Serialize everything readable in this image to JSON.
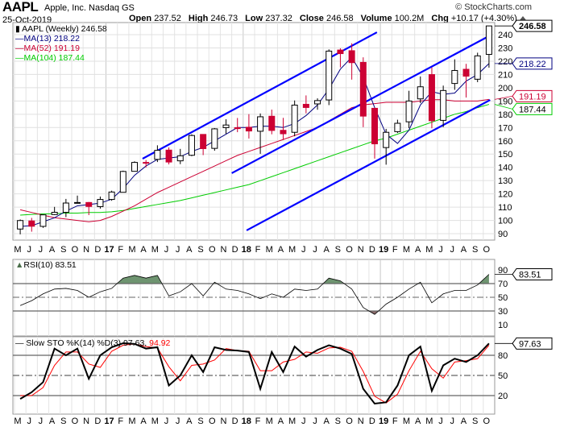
{
  "header": {
    "ticker": "AAPL",
    "company": "Apple, Inc. Nasdaq GS",
    "copyright": "© StockCharts.com",
    "date": "25-Oct-2019",
    "stats": [
      {
        "label": "Open",
        "value": "237.52"
      },
      {
        "label": "High",
        "value": "246.73"
      },
      {
        "label": "Low",
        "value": "237.32"
      },
      {
        "label": "Close",
        "value": "246.58"
      },
      {
        "label": "Volume",
        "value": "100.2M"
      },
      {
        "label": "Chg",
        "value": "+10.17 (+4.30%)"
      }
    ]
  },
  "legend": {
    "price": "AAPL (Weekly) 246.58",
    "ma13": "MA(13) 218.22",
    "ma52": "MA(52) 191.19",
    "ma104": "MA(104) 187.44",
    "rsi": "RSI(10) 83.51",
    "sto_prefix": "Slow STO %K(14) %D(3) 97.63,",
    "sto_d": "94.92"
  },
  "tags": {
    "price": "246.58",
    "ma13": "218.22",
    "ma52": "191.19",
    "ma104": "187.44",
    "rsi": "83.51",
    "sto": "97.63"
  },
  "colors": {
    "up": "#000000",
    "down": "#cc0033",
    "ma13": "#000080",
    "ma52": "#cc0033",
    "ma104": "#00cc00",
    "trend": "#0000ff",
    "rsi_over": "#6e9470",
    "rsi_under": "#8c6b6b",
    "sto_d": "#ff0000"
  },
  "chart_data": {
    "type": "candlestick",
    "title": "AAPL (Weekly)",
    "period_note": "monthly approximation of weekly candles",
    "month_labels": [
      "M",
      "J",
      "J",
      "A",
      "S",
      "O",
      "N",
      "D",
      "17",
      "F",
      "M",
      "A",
      "M",
      "J",
      "J",
      "A",
      "S",
      "O",
      "N",
      "D",
      "18",
      "F",
      "M",
      "A",
      "M",
      "J",
      "J",
      "A",
      "S",
      "O",
      "N",
      "D",
      "19",
      "F",
      "M",
      "A",
      "M",
      "J",
      "J",
      "A",
      "S",
      "O"
    ],
    "y_ticks": [
      90,
      100,
      110,
      120,
      130,
      140,
      150,
      160,
      170,
      180,
      190,
      200,
      210,
      220,
      230,
      240
    ],
    "ylim": [
      84,
      249
    ],
    "ohlc": [
      [
        93.5,
        100.7,
        89.5,
        99.9
      ],
      [
        99.6,
        101.9,
        91.5,
        95.6
      ],
      [
        95.5,
        104.5,
        94.4,
        104.2
      ],
      [
        104.4,
        110.2,
        104,
        106.1
      ],
      [
        106.1,
        116.2,
        102.5,
        113.1
      ],
      [
        113.2,
        118.7,
        113,
        113.5
      ],
      [
        113.5,
        113.9,
        104,
        110.5
      ],
      [
        110.4,
        118,
        108.9,
        115.8
      ],
      [
        115.8,
        122.4,
        114.8,
        121.4
      ],
      [
        121.2,
        137.5,
        121,
        136.9
      ],
      [
        137,
        144.5,
        137,
        143.7
      ],
      [
        143.7,
        145.5,
        140,
        143.6
      ],
      [
        146,
        156.6,
        144,
        152.8
      ],
      [
        153,
        155,
        142.2,
        144
      ],
      [
        144.9,
        153.9,
        142.4,
        148.7
      ],
      [
        149.1,
        164.9,
        148.4,
        164
      ],
      [
        164.8,
        164.9,
        149.2,
        154.1
      ],
      [
        154.3,
        169.6,
        152.5,
        169
      ],
      [
        169.9,
        176.2,
        165.3,
        171.9
      ],
      [
        169.9,
        177.2,
        166.5,
        169.2
      ],
      [
        170.2,
        180.1,
        161.7,
        167.4
      ],
      [
        167.2,
        180.6,
        150.2,
        178.1
      ],
      [
        178.5,
        183.5,
        164.9,
        167.8
      ],
      [
        167.9,
        177.3,
        160.6,
        165.3
      ],
      [
        166.4,
        190.4,
        163.4,
        186.9
      ],
      [
        187.5,
        194.2,
        180.7,
        185.1
      ],
      [
        187.8,
        192,
        183.4,
        190.3
      ],
      [
        190.8,
        228.9,
        186.9,
        227.6
      ],
      [
        228.4,
        229.7,
        215.3,
        225.7
      ],
      [
        227.9,
        233.5,
        206.1,
        218.9
      ],
      [
        219.1,
        222.9,
        170.3,
        178.6
      ],
      [
        184.5,
        184.9,
        146.6,
        157.7
      ],
      [
        154.9,
        169,
        142,
        166.4
      ],
      [
        166.9,
        175.9,
        165.9,
        173.2
      ],
      [
        174.3,
        197.7,
        169.5,
        190
      ],
      [
        191.6,
        208.5,
        188.4,
        200.7
      ],
      [
        209.9,
        215.3,
        169.4,
        175.1
      ],
      [
        175.4,
        201.6,
        170.3,
        197.9
      ],
      [
        203.2,
        221.4,
        198.4,
        213
      ],
      [
        213.9,
        218,
        192.6,
        208.7
      ],
      [
        206.4,
        226.4,
        204.2,
        224
      ],
      [
        225.1,
        246.73,
        215.1,
        246.58
      ]
    ],
    "ma13": [
      95.5,
      96,
      99,
      102,
      107,
      111,
      112,
      113,
      116,
      124,
      134,
      141,
      146,
      147,
      148,
      152,
      155,
      160,
      165,
      170,
      170,
      171,
      171,
      170,
      173,
      179,
      187,
      199,
      214,
      223,
      208,
      185,
      165,
      158,
      168,
      187,
      197,
      195,
      196,
      205,
      210,
      218.22
    ],
    "ma52": [
      108,
      106,
      104,
      102,
      101,
      100,
      99,
      100,
      103,
      107,
      111,
      116,
      121,
      125,
      129,
      133,
      137,
      141,
      145,
      149,
      152,
      155,
      158,
      161,
      164,
      167,
      170,
      175,
      180,
      185,
      187,
      188,
      189,
      189,
      189,
      190,
      191,
      191,
      190,
      190,
      190,
      191.19
    ],
    "ma104": [
      104,
      104.5,
      105,
      105,
      105.5,
      105.5,
      106,
      106,
      106.5,
      107.5,
      109,
      110.5,
      112,
      113.5,
      115,
      117,
      119,
      121,
      123,
      125,
      127,
      130,
      133,
      136,
      139,
      142,
      145,
      148,
      151,
      154,
      157,
      160,
      162,
      165,
      168,
      171,
      174,
      177,
      180,
      182,
      185,
      187.44
    ],
    "trendlines": [
      {
        "from": [
          11.2,
          146.5
        ],
        "to": [
          31.7,
          241.8
        ]
      },
      {
        "from": [
          19.0,
          135.6
        ],
        "to": [
          41.6,
          239.4
        ]
      },
      {
        "from": [
          20.3,
          92.5
        ],
        "to": [
          41.6,
          190.8
        ]
      }
    ],
    "rsi": {
      "ticks": [
        10,
        30,
        50,
        70,
        90
      ],
      "levels": [
        30,
        50,
        70
      ],
      "values": [
        38,
        45,
        55,
        62,
        63,
        60,
        50,
        58,
        63,
        78,
        82,
        78,
        82,
        52,
        58,
        70,
        52,
        72,
        62,
        60,
        55,
        48,
        55,
        50,
        62,
        60,
        62,
        78,
        74,
        62,
        35,
        25,
        40,
        50,
        62,
        72,
        42,
        55,
        60,
        60,
        68,
        83.51
      ]
    },
    "sto": {
      "ticks": [
        20,
        50,
        80
      ],
      "levels": [
        20,
        50,
        80
      ],
      "k": [
        15,
        25,
        40,
        90,
        80,
        90,
        45,
        80,
        92,
        98,
        97,
        90,
        92,
        35,
        50,
        80,
        55,
        92,
        88,
        87,
        85,
        30,
        85,
        55,
        93,
        78,
        88,
        95,
        90,
        82,
        30,
        8,
        10,
        35,
        80,
        93,
        27,
        65,
        75,
        70,
        80,
        97.63
      ],
      "d": [
        20,
        20,
        32,
        65,
        85,
        85,
        67,
        62,
        86,
        95,
        97,
        93,
        91,
        63,
        42,
        65,
        67,
        73,
        90,
        87,
        86,
        57,
        57,
        70,
        74,
        85,
        83,
        91,
        92,
        86,
        56,
        19,
        9,
        22,
        57,
        86,
        60,
        46,
        70,
        72,
        75,
        94.92
      ]
    }
  }
}
